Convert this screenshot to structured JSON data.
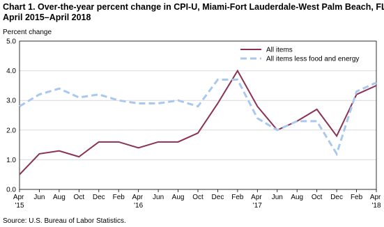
{
  "chart_data": {
    "type": "line",
    "title": "Chart 1. Over-the-year percent change in CPI-U, Miami-Fort Lauderdale-West Palm Beach, FL, April 2015–April 2018",
    "y_label": "Percent change",
    "source": "Source: U.S. Bureau of Labor Statistics.",
    "categories": [
      "Apr '15",
      "Jun",
      "Aug",
      "Oct",
      "Dec",
      "Feb",
      "Apr '16",
      "Jun",
      "Aug",
      "Oct",
      "Dec",
      "Feb",
      "Apr '17",
      "Jun",
      "Aug",
      "Oct",
      "Dec",
      "Feb",
      "Apr '18"
    ],
    "series": [
      {
        "name": "All items",
        "color": "#8c3156",
        "dashed": false,
        "values": [
          0.5,
          1.2,
          1.3,
          1.1,
          1.6,
          1.6,
          1.4,
          1.6,
          1.6,
          1.9,
          2.9,
          4.0,
          2.8,
          2.0,
          2.3,
          2.7,
          1.8,
          3.2,
          3.5
        ]
      },
      {
        "name": "All items less food and energy",
        "color": "#a9c8ef",
        "dashed": true,
        "values": [
          2.8,
          3.2,
          3.4,
          3.1,
          3.2,
          3.0,
          2.9,
          2.9,
          3.0,
          2.8,
          3.7,
          3.7,
          2.4,
          2.0,
          2.3,
          2.3,
          1.2,
          3.3,
          3.6
        ]
      }
    ],
    "ylim": [
      0,
      5
    ],
    "yticks": [
      {
        "value": 0,
        "label": "0.0"
      },
      {
        "value": 1,
        "label": "1.0"
      },
      {
        "value": 2,
        "label": "2.0"
      },
      {
        "value": 3,
        "label": "3.0"
      },
      {
        "value": 4,
        "label": "4.0"
      },
      {
        "value": 5,
        "label": "5.0"
      }
    ],
    "grid": true,
    "legend": "top-right"
  }
}
